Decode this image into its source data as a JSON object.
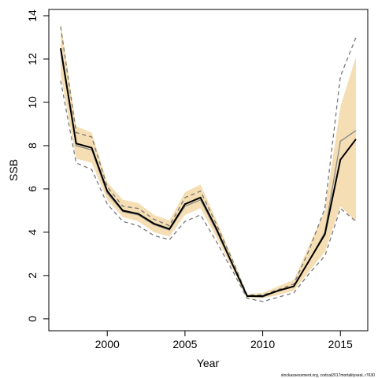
{
  "chart_data": {
    "type": "line",
    "x_label": "Year",
    "y_label": "SSB",
    "footnote": "stockassessment.org, codcat2017mortalityseal, r7630",
    "x": [
      1997,
      1998,
      1999,
      2000,
      2001,
      2002,
      2003,
      2004,
      2005,
      2006,
      2007,
      2008,
      2009,
      2010,
      2011,
      2012,
      2013,
      2014,
      2015,
      2016
    ],
    "band": {
      "color": "#f5deb3",
      "upper": [
        13.7,
        8.9,
        8.6,
        6.3,
        5.5,
        5.35,
        4.8,
        4.55,
        5.85,
        6.2,
        4.6,
        2.9,
        1.15,
        1.2,
        1.5,
        1.8,
        3.4,
        5.0,
        9.8,
        12.1
      ],
      "lower": [
        11.3,
        7.4,
        7.2,
        5.5,
        4.7,
        4.5,
        4.0,
        3.8,
        4.8,
        5.1,
        3.8,
        2.4,
        0.95,
        0.95,
        1.1,
        1.3,
        2.2,
        3.1,
        5.2,
        4.5
      ]
    },
    "series": [
      {
        "color": "#777777",
        "dashed": true,
        "values": [
          13.5,
          8.6,
          8.4,
          6.1,
          5.2,
          5.1,
          4.6,
          4.3,
          5.6,
          5.9,
          4.4,
          2.8,
          1.1,
          1.1,
          1.35,
          1.6,
          3.2,
          5.1,
          11.2,
          13.0
        ]
      },
      {
        "color": "#777777",
        "dashed": true,
        "values": [
          11.0,
          7.2,
          6.9,
          5.3,
          4.5,
          4.3,
          3.85,
          3.65,
          4.5,
          4.8,
          3.6,
          2.3,
          0.95,
          0.8,
          1.0,
          1.2,
          2.1,
          2.9,
          5.1,
          4.5
        ]
      },
      {
        "color": "#888888",
        "dashed": false,
        "values": [
          12.4,
          8.0,
          7.8,
          5.8,
          4.95,
          4.8,
          4.35,
          4.1,
          5.2,
          5.5,
          4.1,
          2.6,
          1.05,
          1.0,
          1.3,
          1.5,
          2.7,
          4.0,
          8.2,
          8.7
        ]
      },
      {
        "color": "#000000",
        "dashed": false,
        "values": [
          12.5,
          8.1,
          7.9,
          5.9,
          5.0,
          4.85,
          4.4,
          4.15,
          5.3,
          5.6,
          4.2,
          2.6,
          1.05,
          1.05,
          1.3,
          1.5,
          2.7,
          3.9,
          7.35,
          8.3
        ]
      }
    ],
    "xlim": [
      1996.24,
      2016.76
    ],
    "xticks": [
      2000,
      2005,
      2010,
      2015
    ],
    "ylim": [
      -0.55,
      14.29
    ],
    "yticks": [
      0,
      2,
      4,
      6,
      8,
      10,
      12,
      14
    ]
  }
}
